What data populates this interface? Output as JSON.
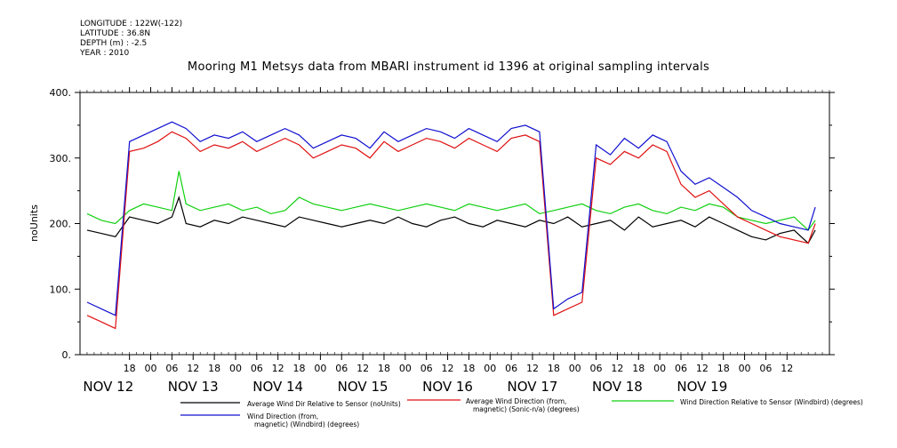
{
  "meta": {
    "lines": [
      "LONGITUDE : 122W(-122)",
      "LATITUDE : 36.8N",
      "DEPTH (m) : -2.5",
      "YEAR : 2010"
    ]
  },
  "title": "Mooring M1 Metsys data from MBARI instrument id 1396 at original sampling intervals",
  "chart_data": {
    "type": "line",
    "title": "Mooring M1 Metsys data from MBARI instrument id 1396 at original sampling intervals",
    "xlabel": "",
    "ylabel": "noUnits",
    "ylim": [
      0,
      400
    ],
    "yticks": [
      0,
      100,
      200,
      300,
      400
    ],
    "yticklabels": [
      "0.",
      "100.",
      "200.",
      "300.",
      "400."
    ],
    "xlim_hours": [
      -8,
      204
    ],
    "hour_ticks": [
      {
        "h": 6,
        "label": "18"
      },
      {
        "h": 12,
        "label": "00"
      },
      {
        "h": 18,
        "label": "06"
      },
      {
        "h": 24,
        "label": "12"
      },
      {
        "h": 30,
        "label": "18"
      },
      {
        "h": 36,
        "label": "00"
      },
      {
        "h": 42,
        "label": "06"
      },
      {
        "h": 48,
        "label": "12"
      },
      {
        "h": 54,
        "label": "18"
      },
      {
        "h": 60,
        "label": "00"
      },
      {
        "h": 66,
        "label": "06"
      },
      {
        "h": 72,
        "label": "12"
      },
      {
        "h": 78,
        "label": "18"
      },
      {
        "h": 84,
        "label": "00"
      },
      {
        "h": 90,
        "label": "06"
      },
      {
        "h": 96,
        "label": "12"
      },
      {
        "h": 102,
        "label": "18"
      },
      {
        "h": 108,
        "label": "00"
      },
      {
        "h": 114,
        "label": "06"
      },
      {
        "h": 120,
        "label": "12"
      },
      {
        "h": 126,
        "label": "18"
      },
      {
        "h": 132,
        "label": "00"
      },
      {
        "h": 138,
        "label": "06"
      },
      {
        "h": 144,
        "label": "12"
      },
      {
        "h": 150,
        "label": "18"
      },
      {
        "h": 156,
        "label": "00"
      },
      {
        "h": 162,
        "label": "06"
      },
      {
        "h": 168,
        "label": "12"
      },
      {
        "h": 174,
        "label": "18"
      },
      {
        "h": 180,
        "label": "00"
      },
      {
        "h": 186,
        "label": "06"
      },
      {
        "h": 192,
        "label": "12"
      }
    ],
    "day_labels": [
      {
        "h": 0,
        "label": "NOV 12"
      },
      {
        "h": 24,
        "label": "NOV 13"
      },
      {
        "h": 48,
        "label": "NOV 14"
      },
      {
        "h": 72,
        "label": "NOV 15"
      },
      {
        "h": 96,
        "label": "NOV 16"
      },
      {
        "h": 120,
        "label": "NOV 17"
      },
      {
        "h": 144,
        "label": "NOV 18"
      },
      {
        "h": 168,
        "label": "NOV 19"
      }
    ],
    "grid": false,
    "legend_position": "bottom",
    "series": [
      {
        "name": "Average Wind Dir Relative to Sensor (noUnits)",
        "color": "#000000",
        "x": [
          -6,
          -2,
          2,
          6,
          10,
          14,
          18,
          20,
          22,
          26,
          30,
          34,
          38,
          42,
          46,
          50,
          54,
          58,
          62,
          66,
          70,
          74,
          78,
          82,
          86,
          90,
          94,
          98,
          102,
          106,
          110,
          114,
          118,
          122,
          126,
          130,
          134,
          138,
          142,
          146,
          150,
          154,
          158,
          162,
          166,
          170,
          174,
          178,
          182,
          186,
          190,
          194,
          198,
          200
        ],
        "y": [
          190,
          185,
          180,
          210,
          205,
          200,
          210,
          240,
          200,
          195,
          205,
          200,
          210,
          205,
          200,
          195,
          210,
          205,
          200,
          195,
          200,
          205,
          200,
          210,
          200,
          195,
          205,
          210,
          200,
          195,
          205,
          200,
          195,
          205,
          200,
          210,
          195,
          200,
          205,
          190,
          210,
          195,
          200,
          205,
          195,
          210,
          200,
          190,
          180,
          175,
          185,
          190,
          170,
          190
        ]
      },
      {
        "name": "Average Wind Direction (from, magnetic) (Sonic-n/a) (degrees)",
        "color": "#e01010",
        "x": [
          -6,
          -2,
          2,
          6,
          10,
          14,
          18,
          22,
          26,
          30,
          34,
          38,
          42,
          46,
          50,
          54,
          58,
          62,
          66,
          70,
          74,
          78,
          82,
          86,
          90,
          94,
          98,
          102,
          106,
          110,
          114,
          118,
          122,
          126,
          130,
          134,
          138,
          142,
          146,
          150,
          154,
          158,
          162,
          166,
          170,
          174,
          178,
          182,
          186,
          190,
          194,
          198,
          200
        ],
        "y": [
          60,
          50,
          40,
          310,
          315,
          325,
          340,
          330,
          310,
          320,
          315,
          325,
          310,
          320,
          330,
          320,
          300,
          310,
          320,
          315,
          300,
          325,
          310,
          320,
          330,
          325,
          315,
          330,
          320,
          310,
          330,
          335,
          325,
          60,
          70,
          80,
          300,
          290,
          310,
          300,
          320,
          310,
          260,
          240,
          250,
          230,
          210,
          200,
          190,
          180,
          175,
          170,
          200
        ]
      },
      {
        "name": "Wind Direction Relative to Sensor (Windbird) (degrees)",
        "color": "#10d010",
        "x": [
          -6,
          -2,
          2,
          6,
          10,
          14,
          18,
          20,
          22,
          26,
          30,
          34,
          38,
          42,
          46,
          50,
          54,
          58,
          62,
          66,
          70,
          74,
          78,
          82,
          86,
          90,
          94,
          98,
          102,
          106,
          110,
          114,
          118,
          122,
          126,
          130,
          134,
          138,
          142,
          146,
          150,
          154,
          158,
          162,
          166,
          170,
          174,
          178,
          182,
          186,
          190,
          194,
          198,
          200
        ],
        "y": [
          215,
          205,
          200,
          220,
          230,
          225,
          220,
          280,
          230,
          220,
          225,
          230,
          220,
          225,
          215,
          220,
          240,
          230,
          225,
          220,
          225,
          230,
          225,
          220,
          225,
          230,
          225,
          220,
          230,
          225,
          220,
          225,
          230,
          215,
          220,
          225,
          230,
          220,
          215,
          225,
          230,
          220,
          215,
          225,
          220,
          230,
          225,
          210,
          205,
          200,
          205,
          210,
          190,
          205
        ]
      },
      {
        "name": "Wind Direction (from, magnetic) (Windbird) (degrees)",
        "color": "#1010d0",
        "x": [
          -6,
          -2,
          2,
          6,
          10,
          14,
          18,
          22,
          26,
          30,
          34,
          38,
          42,
          46,
          50,
          54,
          58,
          62,
          66,
          70,
          74,
          78,
          82,
          86,
          90,
          94,
          98,
          102,
          106,
          110,
          114,
          118,
          122,
          126,
          130,
          134,
          138,
          142,
          146,
          150,
          154,
          158,
          162,
          166,
          170,
          174,
          178,
          182,
          186,
          190,
          194,
          198,
          200
        ],
        "y": [
          80,
          70,
          60,
          325,
          335,
          345,
          355,
          345,
          325,
          335,
          330,
          340,
          325,
          335,
          345,
          335,
          315,
          325,
          335,
          330,
          315,
          340,
          325,
          335,
          345,
          340,
          330,
          345,
          335,
          325,
          345,
          350,
          340,
          70,
          85,
          95,
          320,
          305,
          330,
          315,
          335,
          325,
          280,
          260,
          270,
          255,
          240,
          220,
          210,
          200,
          195,
          190,
          225
        ]
      }
    ]
  }
}
